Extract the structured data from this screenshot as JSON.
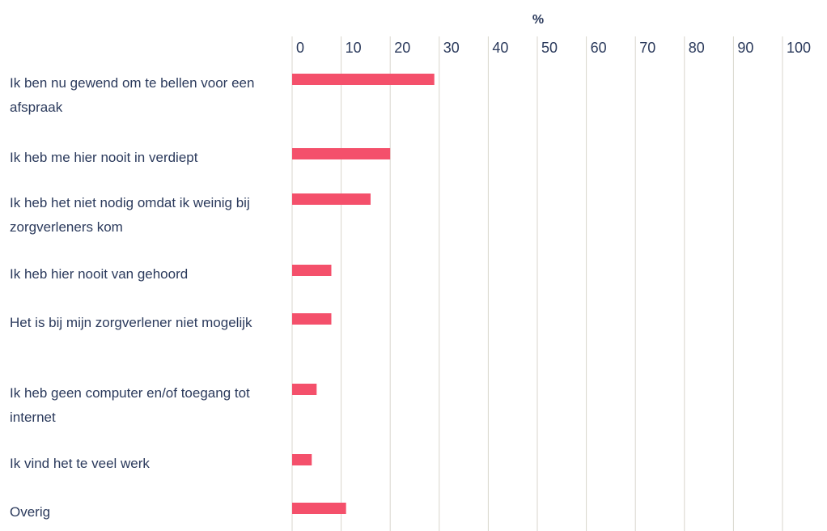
{
  "chart_data": {
    "type": "bar",
    "orientation": "horizontal",
    "x_label": "%",
    "categories": [
      "Ik ben nu gewend om te bellen voor een afspraak",
      "Ik heb me hier nooit in verdiept",
      "Ik heb het niet nodig omdat ik weinig bij zorgverleners kom",
      "Ik heb hier nooit van gehoord",
      "Het is bij mijn zorgverlener niet mogelijk",
      "Ik heb geen computer en/of toegang tot internet",
      "Ik vind het te veel werk",
      "Overig"
    ],
    "values": [
      29,
      20,
      16,
      8,
      8,
      5,
      4,
      11
    ],
    "color": "#f4506b",
    "xlim": [
      0,
      100
    ],
    "xticks": [
      0,
      10,
      20,
      30,
      40,
      50,
      60,
      70,
      80,
      90,
      100
    ],
    "grid": true
  }
}
